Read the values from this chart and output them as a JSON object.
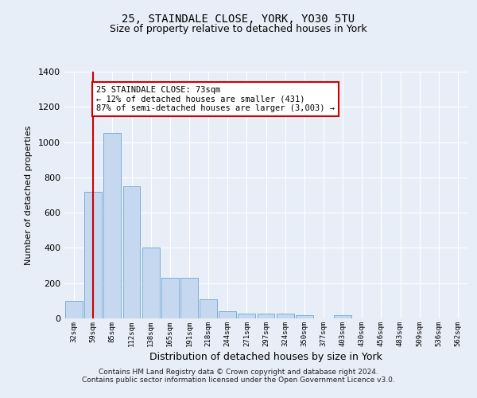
{
  "title1": "25, STAINDALE CLOSE, YORK, YO30 5TU",
  "title2": "Size of property relative to detached houses in York",
  "xlabel": "Distribution of detached houses by size in York",
  "ylabel": "Number of detached properties",
  "bar_labels": [
    "32sqm",
    "59sqm",
    "85sqm",
    "112sqm",
    "138sqm",
    "165sqm",
    "191sqm",
    "218sqm",
    "244sqm",
    "271sqm",
    "297sqm",
    "324sqm",
    "350sqm",
    "377sqm",
    "403sqm",
    "430sqm",
    "456sqm",
    "483sqm",
    "509sqm",
    "536sqm",
    "562sqm"
  ],
  "bar_values": [
    100,
    720,
    1050,
    750,
    400,
    230,
    230,
    110,
    40,
    25,
    28,
    28,
    18,
    0,
    18,
    0,
    0,
    0,
    0,
    0,
    0
  ],
  "bar_color": "#c5d8f0",
  "bar_edge_color": "#7aafd4",
  "red_line_x": 1.0,
  "annotation_text": "25 STAINDALE CLOSE: 73sqm\n← 12% of detached houses are smaller (431)\n87% of semi-detached houses are larger (3,003) →",
  "ylim": [
    0,
    1400
  ],
  "yticks": [
    0,
    200,
    400,
    600,
    800,
    1000,
    1200,
    1400
  ],
  "footer1": "Contains HM Land Registry data © Crown copyright and database right 2024.",
  "footer2": "Contains public sector information licensed under the Open Government Licence v3.0.",
  "background_color": "#e8eef8",
  "plot_background": "#e8eef8",
  "grid_color": "#ffffff",
  "annotation_box_color": "#ffffff",
  "annotation_box_edge": "#cc0000"
}
